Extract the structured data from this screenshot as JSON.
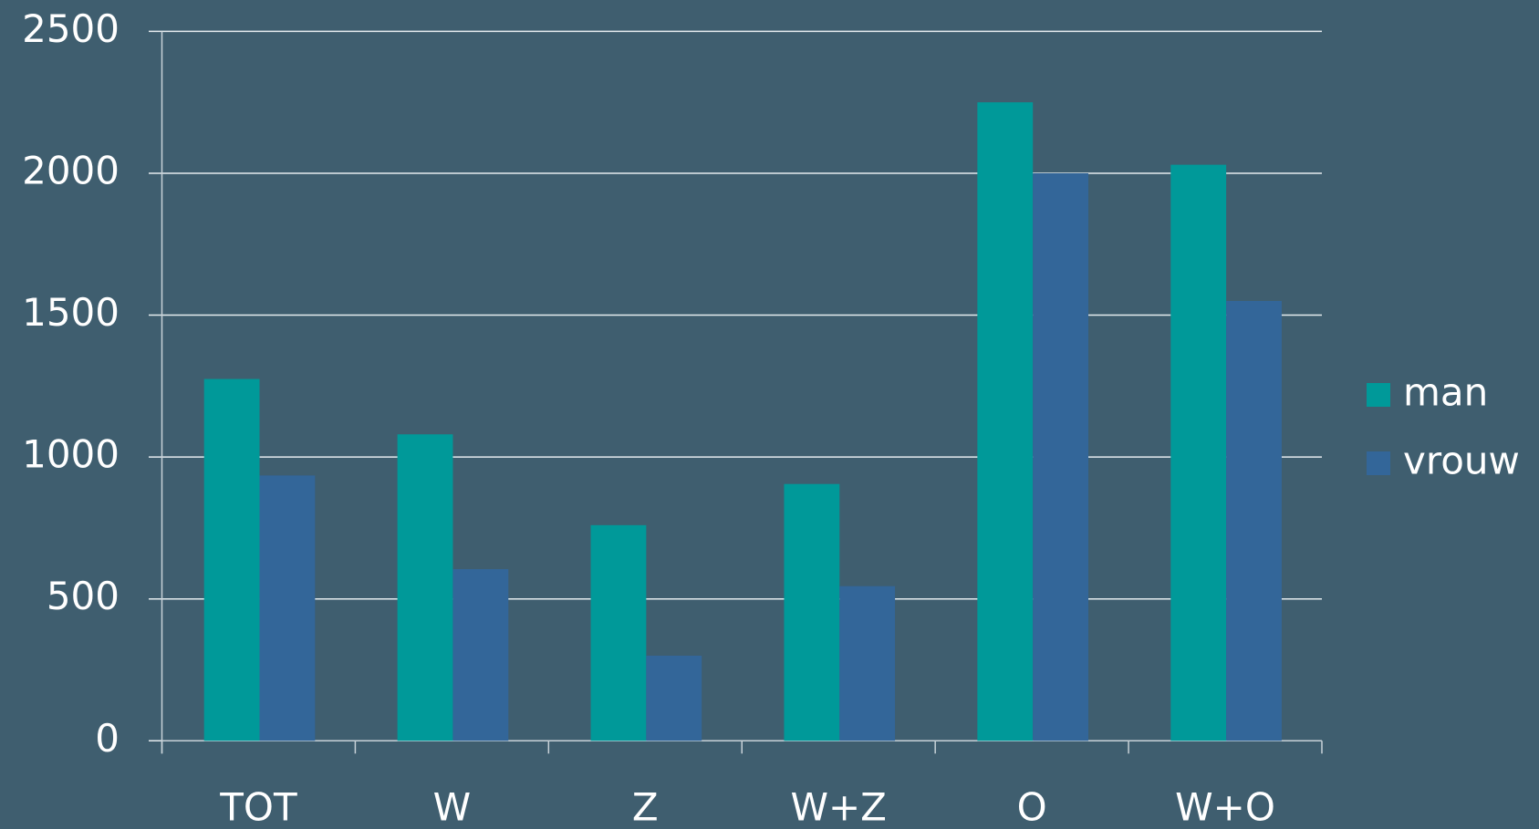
{
  "chart_data": {
    "type": "bar",
    "categories": [
      "TOT",
      "W",
      "Z",
      "W+Z",
      "O",
      "W+O"
    ],
    "series": [
      {
        "name": "man",
        "color": "#009999",
        "values": [
          1275,
          1080,
          760,
          905,
          2250,
          2030
        ]
      },
      {
        "name": "vrouw",
        "color": "#336699",
        "values": [
          935,
          605,
          300,
          545,
          2000,
          1550
        ]
      }
    ],
    "ylim": [
      0,
      2500
    ],
    "yticks": [
      0,
      500,
      1000,
      1500,
      2000,
      2500
    ],
    "grid": true,
    "legend": "right"
  }
}
